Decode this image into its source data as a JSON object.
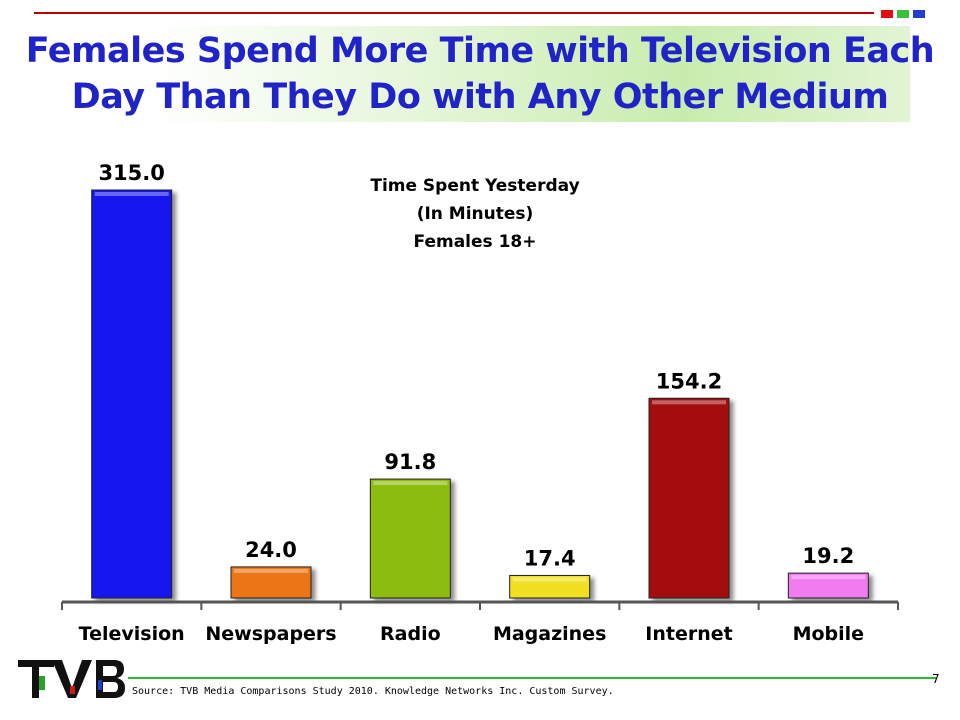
{
  "title": {
    "line1": "Females Spend More Time with Television Each",
    "line2": "Day Than They Do with Any Other Medium",
    "color": "#1f23c8"
  },
  "chart_data": {
    "type": "bar",
    "subtitle": [
      "Time Spent Yesterday",
      "(In Minutes)",
      "Females 18+"
    ],
    "categories": [
      "Television",
      "Newspapers",
      "Radio",
      "Magazines",
      "Internet",
      "Mobile"
    ],
    "values": [
      315.0,
      24.0,
      91.8,
      17.4,
      154.2,
      19.2
    ],
    "value_labels": [
      "315.0",
      "24.0",
      "91.8",
      "17.4",
      "154.2",
      "19.2"
    ],
    "colors": [
      "#1414f0",
      "#ec7414",
      "#8cbc10",
      "#f0e020",
      "#a40a0a",
      "#f07cf0"
    ],
    "ylim": [
      0,
      315
    ],
    "grid": false,
    "xlabel": "",
    "ylabel": ""
  },
  "footer": {
    "source": "Source: TVB Media Comparisons Study 2010. Knowledge Networks Inc. Custom Survey.",
    "page_number": "7",
    "logo_text": "TVB"
  },
  "accent_squares": [
    "#e01010",
    "#38c038",
    "#1f3fd0"
  ]
}
